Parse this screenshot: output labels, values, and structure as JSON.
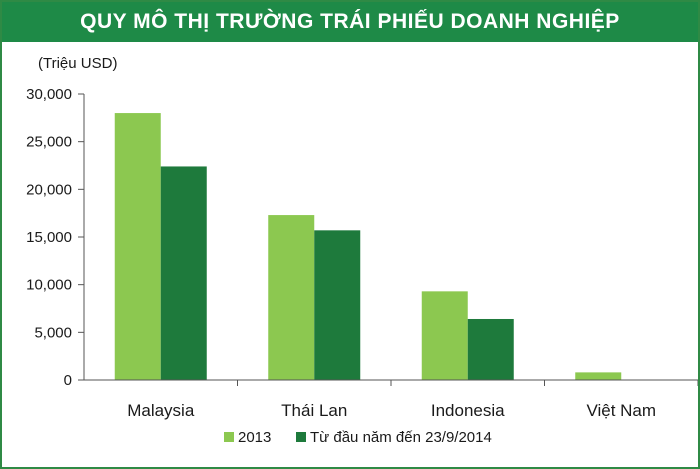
{
  "chart_data": {
    "type": "bar",
    "title": "QUY MÔ THỊ TRƯỜNG TRÁI PHIẾU DOANH NGHIỆP",
    "ylabel": "(Triệu USD)",
    "xlabel": "",
    "categories": [
      "Malaysia",
      "Thái Lan",
      "Indonesia",
      "Việt Nam"
    ],
    "series": [
      {
        "name": "2013",
        "values": [
          28000,
          17300,
          9300,
          800
        ],
        "color": "#8cc850"
      },
      {
        "name": "Từ đầu năm đến 23/9/2014",
        "values": [
          22400,
          15700,
          6400,
          0
        ],
        "color": "#1e7a3c"
      }
    ],
    "ylim": [
      0,
      30000
    ],
    "yticks": [
      "0",
      "5,000",
      "10,000",
      "15,000",
      "20,000",
      "25,000",
      "30,000"
    ],
    "ytick_values": [
      0,
      5000,
      10000,
      15000,
      20000,
      25000,
      30000
    ],
    "grid": false,
    "legend_position": "bottom-center"
  }
}
